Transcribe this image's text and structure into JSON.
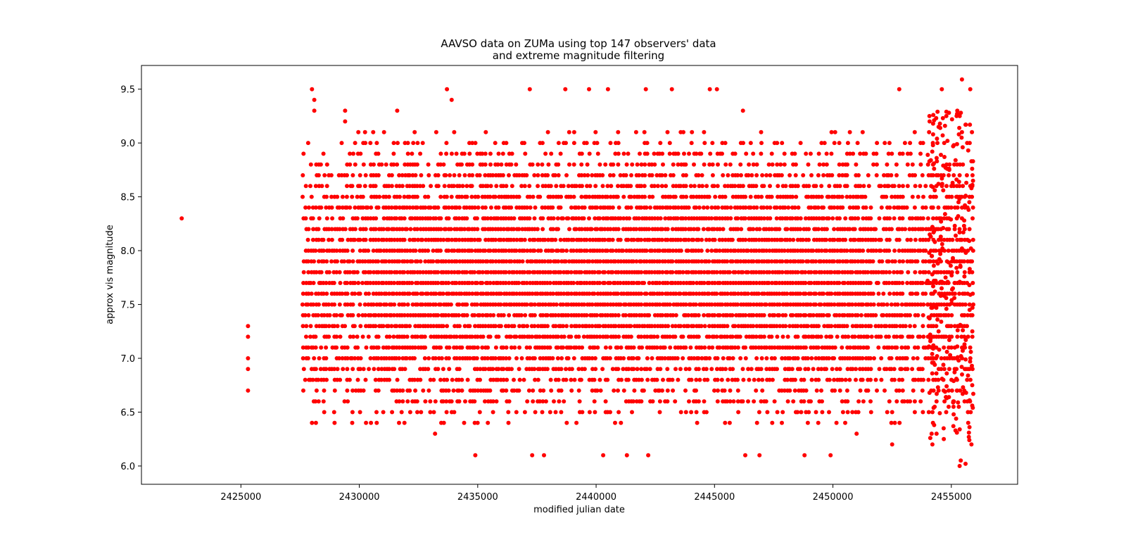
{
  "chart_data": {
    "type": "scatter",
    "title_line1": "AAVSO data on ZUMa using top 147 observers' data",
    "title_line2": "and extreme magnitude filtering",
    "xlabel": "modified julian date",
    "ylabel": "approx vis magnitude",
    "xlim": [
      2420800,
      2457800
    ],
    "ylim": [
      5.83,
      9.72
    ],
    "xticks": [
      2425000,
      2430000,
      2435000,
      2440000,
      2445000,
      2450000,
      2455000
    ],
    "yticks": [
      6.0,
      6.5,
      7.0,
      7.5,
      8.0,
      8.5,
      9.0,
      9.5
    ],
    "ytick_labels": [
      "6.0",
      "6.5",
      "7.0",
      "7.5",
      "8.0",
      "8.5",
      "9.0",
      "9.5"
    ],
    "grid": false,
    "marker_color": "#ff0000",
    "isolated_points": [
      [
        2422500,
        8.3
      ],
      [
        2425300,
        7.3
      ],
      [
        2425300,
        7.2
      ],
      [
        2425300,
        7.0
      ],
      [
        2425300,
        6.9
      ],
      [
        2425300,
        6.7
      ]
    ],
    "main_record_range": [
      2427600,
      2455950
    ],
    "dense_magnitude_range": [
      6.4,
      9.1
    ],
    "sparse_high_points": [
      [
        2428000,
        9.5
      ],
      [
        2428100,
        9.4
      ],
      [
        2428100,
        9.3
      ],
      [
        2429400,
        9.3
      ],
      [
        2429400,
        9.2
      ],
      [
        2431600,
        9.3
      ],
      [
        2433700,
        9.5
      ],
      [
        2433900,
        9.4
      ],
      [
        2437200,
        9.5
      ],
      [
        2438700,
        9.5
      ],
      [
        2439700,
        9.5
      ],
      [
        2440500,
        9.5
      ],
      [
        2442100,
        9.5
      ],
      [
        2443200,
        9.5
      ],
      [
        2444800,
        9.5
      ],
      [
        2445100,
        9.5
      ],
      [
        2446200,
        9.3
      ],
      [
        2452800,
        9.5
      ],
      [
        2454600,
        9.5
      ],
      [
        2455450,
        9.59
      ],
      [
        2455800,
        9.5
      ]
    ],
    "sparse_low_points": [
      [
        2428000,
        6.4
      ],
      [
        2429700,
        6.4
      ],
      [
        2433200,
        6.3
      ],
      [
        2434900,
        6.1
      ],
      [
        2437300,
        6.1
      ],
      [
        2437800,
        6.1
      ],
      [
        2440300,
        6.1
      ],
      [
        2441300,
        6.1
      ],
      [
        2442200,
        6.1
      ],
      [
        2446300,
        6.1
      ],
      [
        2446900,
        6.1
      ],
      [
        2448800,
        6.1
      ],
      [
        2449900,
        6.1
      ],
      [
        2451000,
        6.3
      ],
      [
        2452500,
        6.2
      ],
      [
        2454200,
        6.2
      ],
      [
        2455350,
        6.0
      ],
      [
        2455400,
        6.05
      ],
      [
        2455600,
        6.02
      ],
      [
        2455850,
        6.2
      ]
    ]
  }
}
